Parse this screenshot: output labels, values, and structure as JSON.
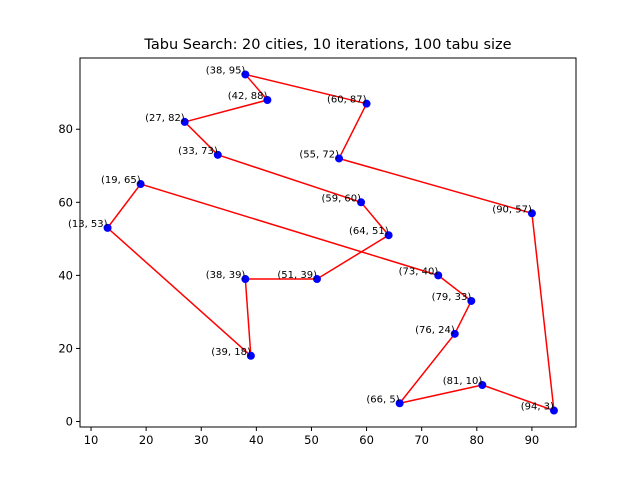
{
  "chart_data": {
    "type": "line",
    "title": "Tabu Search: 20 cities, 10 iterations, 100 tabu size",
    "xlabel": "",
    "ylabel": "",
    "xlim": [
      8,
      98
    ],
    "ylim": [
      -1.5,
      99.5
    ],
    "xticks": [
      10,
      20,
      30,
      40,
      50,
      60,
      70,
      80,
      90
    ],
    "yticks": [
      0,
      20,
      40,
      60,
      80
    ],
    "grid": false,
    "colors": {
      "route": "#ff0000",
      "city": "#0000ff"
    },
    "route": [
      [
        38,
        95
      ],
      [
        60,
        87
      ],
      [
        55,
        72
      ],
      [
        90,
        57
      ],
      [
        94,
        3
      ],
      [
        81,
        10
      ],
      [
        66,
        5
      ],
      [
        76,
        24
      ],
      [
        79,
        33
      ],
      [
        73,
        40
      ],
      [
        19,
        65
      ],
      [
        13,
        53
      ],
      [
        39,
        18
      ],
      [
        38,
        39
      ],
      [
        51,
        39
      ],
      [
        64,
        51
      ],
      [
        59,
        60
      ],
      [
        33,
        73
      ],
      [
        27,
        82
      ],
      [
        42,
        88
      ],
      [
        38,
        95
      ]
    ],
    "cities": [
      {
        "x": 38,
        "y": 95,
        "label": "(38, 95)"
      },
      {
        "x": 42,
        "y": 88,
        "label": "(42, 88)"
      },
      {
        "x": 60,
        "y": 87,
        "label": "(60, 87)"
      },
      {
        "x": 27,
        "y": 82,
        "label": "(27, 82)"
      },
      {
        "x": 33,
        "y": 73,
        "label": "(33, 73)"
      },
      {
        "x": 55,
        "y": 72,
        "label": "(55, 72)"
      },
      {
        "x": 19,
        "y": 65,
        "label": "(19, 65)"
      },
      {
        "x": 59,
        "y": 60,
        "label": "(59, 60)"
      },
      {
        "x": 90,
        "y": 57,
        "label": "(90, 57)"
      },
      {
        "x": 13,
        "y": 53,
        "label": "(13, 53)"
      },
      {
        "x": 64,
        "y": 51,
        "label": "(64, 51)"
      },
      {
        "x": 73,
        "y": 40,
        "label": "(73, 40)"
      },
      {
        "x": 38,
        "y": 39,
        "label": "(38, 39)"
      },
      {
        "x": 51,
        "y": 39,
        "label": "(51, 39)"
      },
      {
        "x": 79,
        "y": 33,
        "label": "(79, 33)"
      },
      {
        "x": 76,
        "y": 24,
        "label": "(76, 24)"
      },
      {
        "x": 39,
        "y": 18,
        "label": "(39, 18)"
      },
      {
        "x": 81,
        "y": 10,
        "label": "(81, 10)"
      },
      {
        "x": 66,
        "y": 5,
        "label": "(66, 5)"
      },
      {
        "x": 94,
        "y": 3,
        "label": "(94, 3)"
      }
    ]
  }
}
